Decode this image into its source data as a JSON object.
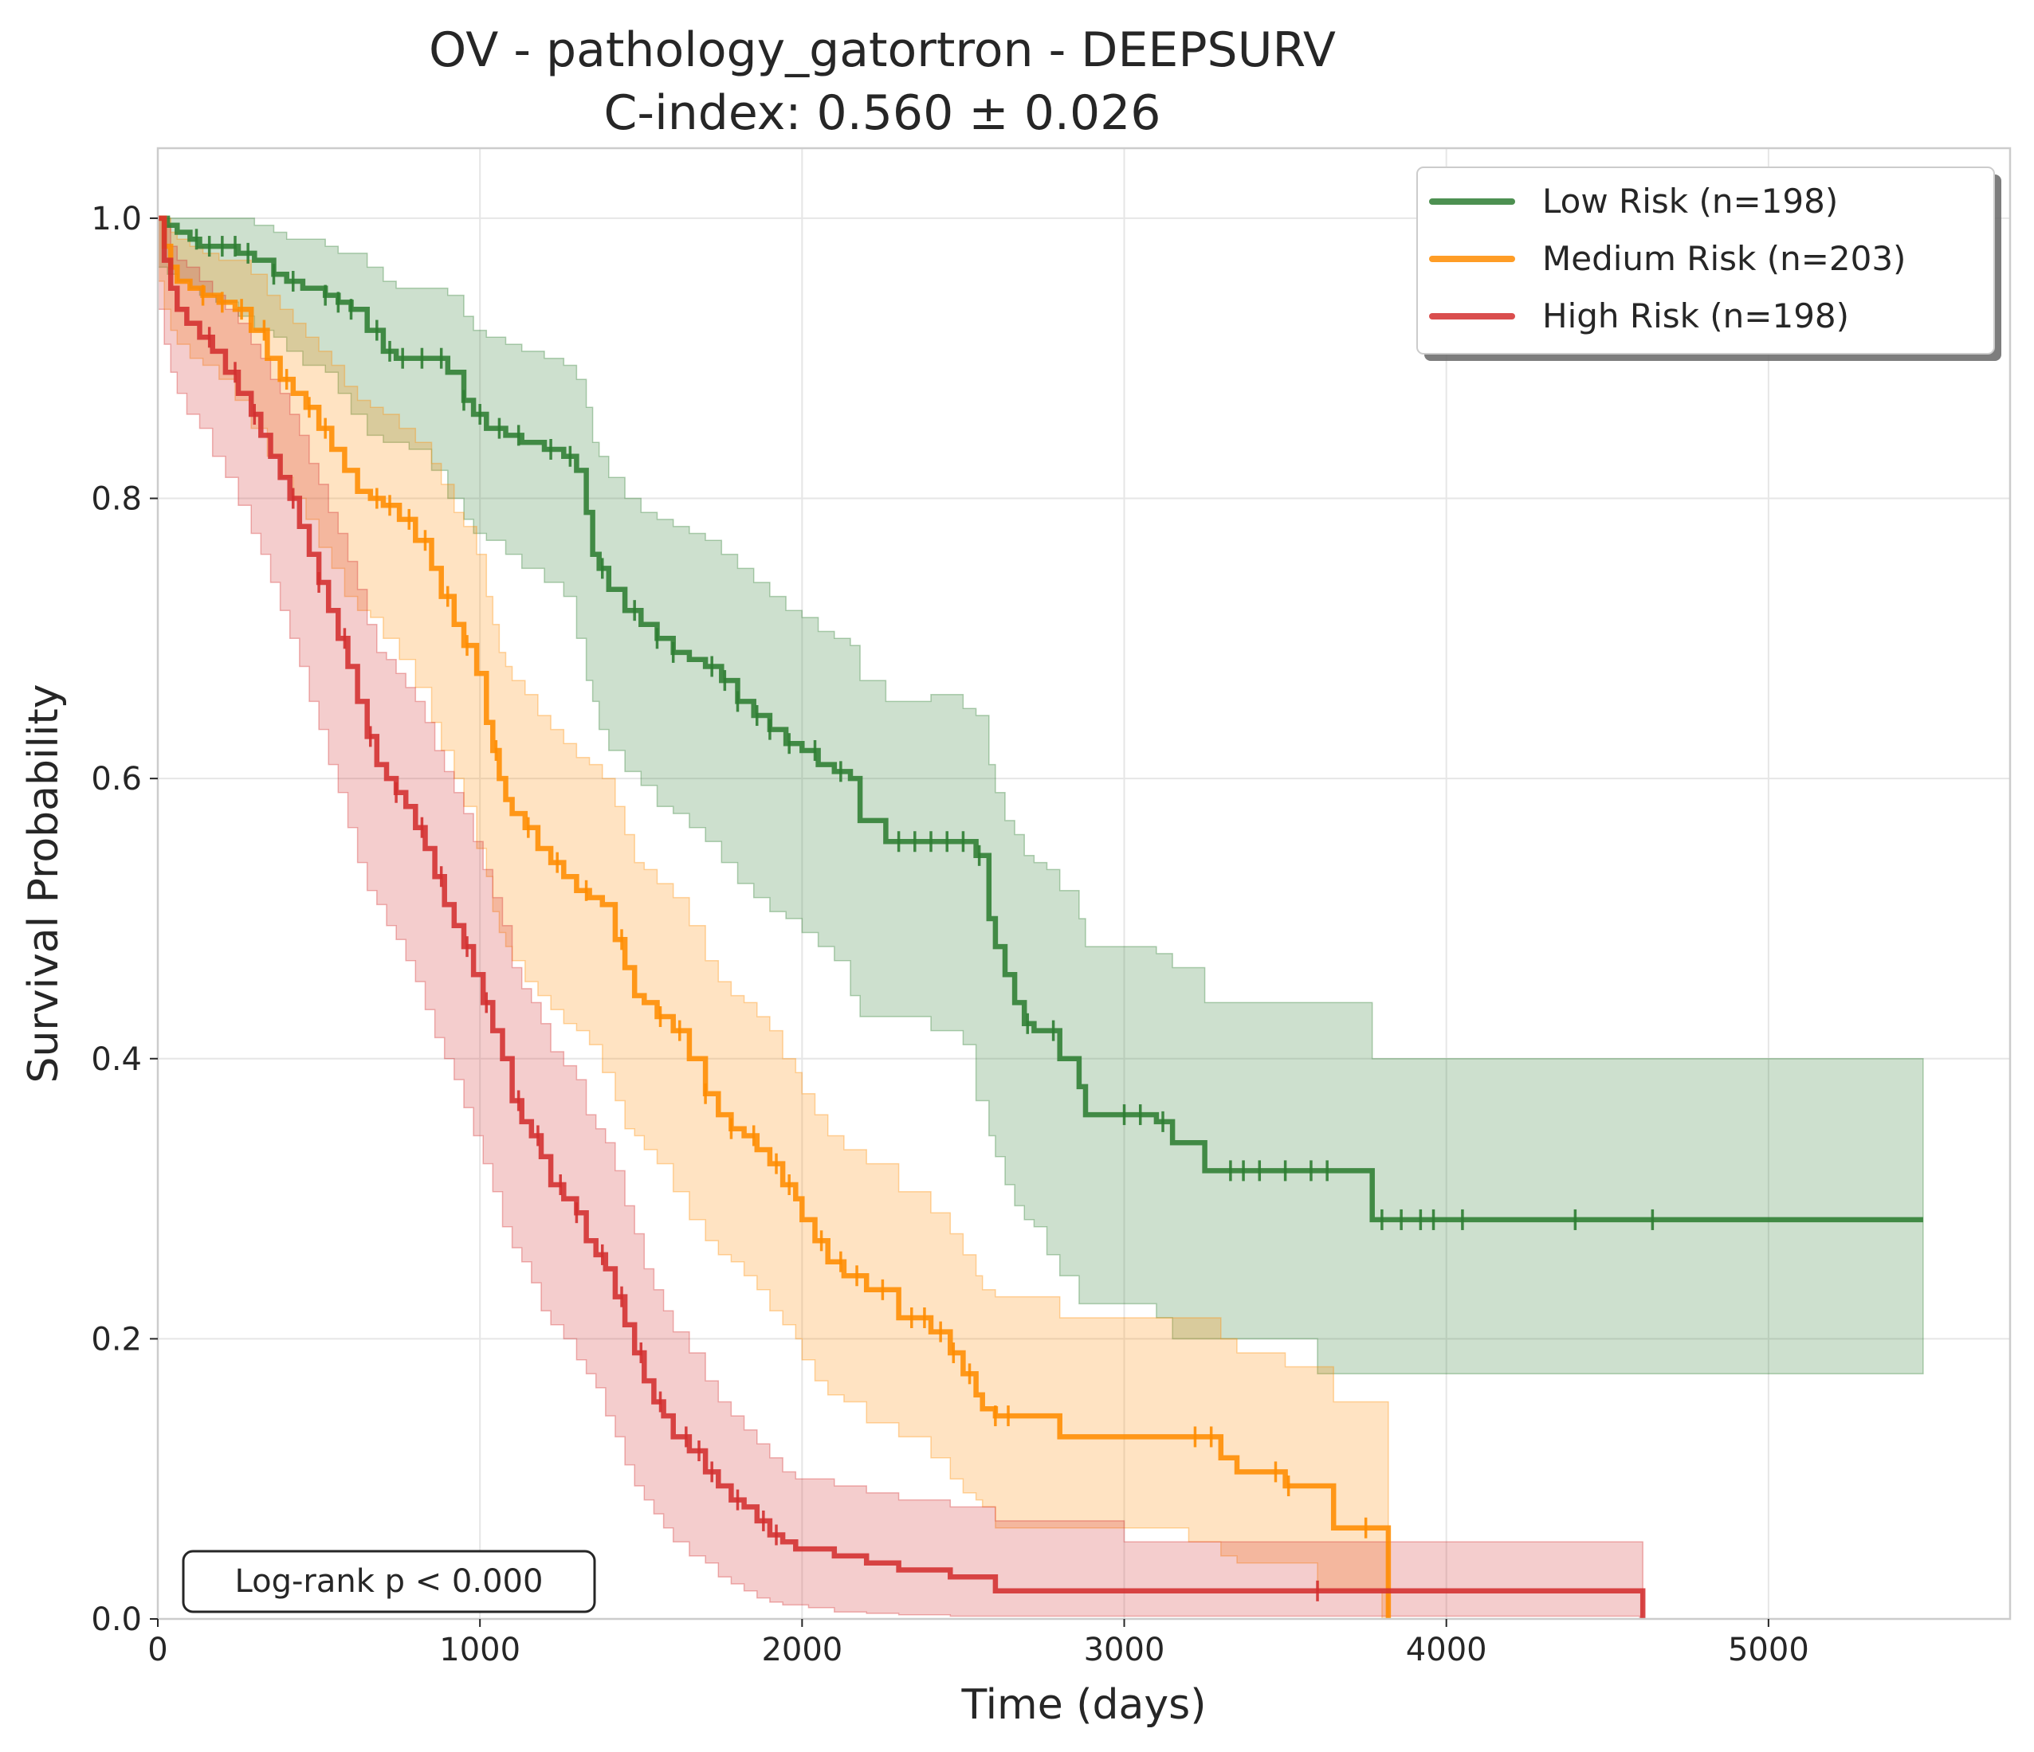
{
  "chart_data": {
    "type": "line",
    "subtype": "kaplan-meier step curves with confidence bands",
    "title": "OV - pathology_gatortron - DEEPSURV",
    "subtitle": "C-index: 0.560 ± 0.026",
    "xlabel": "Time (days)",
    "ylabel": "Survival Probability",
    "xlim": [
      0,
      5750
    ],
    "ylim": [
      0.0,
      1.05
    ],
    "x_ticks": [
      0,
      1000,
      2000,
      3000,
      4000,
      5000
    ],
    "x_tick_labels": [
      "0",
      "1000",
      "2000",
      "3000",
      "4000",
      "5000"
    ],
    "y_ticks": [
      0.0,
      0.2,
      0.4,
      0.6,
      0.8,
      1.0
    ],
    "y_tick_labels": [
      "0.0",
      "0.2",
      "0.4",
      "0.6",
      "0.8",
      "1.0"
    ],
    "grid": true,
    "legend_position": "top-right",
    "annotation": "Log-rank p < 0.000",
    "series": [
      {
        "name": "Low Risk (n=198)",
        "color": "#2e7d32",
        "x": [
          0,
          30,
          60,
          100,
          130,
          180,
          250,
          300,
          360,
          400,
          450,
          520,
          560,
          600,
          650,
          700,
          740,
          780,
          850,
          900,
          950,
          980,
          1020,
          1080,
          1130,
          1200,
          1260,
          1300,
          1330,
          1350,
          1370,
          1400,
          1450,
          1500,
          1550,
          1600,
          1650,
          1700,
          1750,
          1800,
          1850,
          1900,
          1950,
          2000,
          2050,
          2100,
          2150,
          2180,
          2260,
          2400,
          2500,
          2540,
          2580,
          2600,
          2630,
          2660,
          2690,
          2720,
          2760,
          2800,
          2860,
          2880,
          2960,
          3100,
          3150,
          3250,
          3400,
          3500,
          3600,
          3770,
          3800,
          4000,
          4500,
          5000,
          5480
        ],
        "y": [
          1.0,
          0.995,
          0.99,
          0.985,
          0.98,
          0.98,
          0.975,
          0.97,
          0.96,
          0.955,
          0.95,
          0.945,
          0.94,
          0.935,
          0.92,
          0.905,
          0.9,
          0.9,
          0.9,
          0.89,
          0.87,
          0.86,
          0.85,
          0.845,
          0.84,
          0.835,
          0.83,
          0.82,
          0.79,
          0.76,
          0.75,
          0.735,
          0.72,
          0.71,
          0.7,
          0.69,
          0.685,
          0.68,
          0.67,
          0.655,
          0.645,
          0.635,
          0.625,
          0.62,
          0.61,
          0.605,
          0.6,
          0.57,
          0.555,
          0.555,
          0.555,
          0.545,
          0.5,
          0.48,
          0.46,
          0.44,
          0.425,
          0.42,
          0.42,
          0.4,
          0.38,
          0.36,
          0.36,
          0.355,
          0.34,
          0.32,
          0.32,
          0.32,
          0.32,
          0.285,
          0.285,
          0.285,
          0.285,
          0.285,
          0.285
        ],
        "lower": [
          0.97,
          0.965,
          0.96,
          0.955,
          0.95,
          0.945,
          0.94,
          0.93,
          0.92,
          0.915,
          0.905,
          0.895,
          0.89,
          0.875,
          0.86,
          0.845,
          0.84,
          0.84,
          0.835,
          0.82,
          0.8,
          0.785,
          0.775,
          0.77,
          0.76,
          0.75,
          0.74,
          0.73,
          0.7,
          0.67,
          0.655,
          0.635,
          0.62,
          0.605,
          0.595,
          0.58,
          0.575,
          0.565,
          0.555,
          0.54,
          0.525,
          0.515,
          0.505,
          0.5,
          0.49,
          0.48,
          0.47,
          0.445,
          0.43,
          0.43,
          0.42,
          0.41,
          0.37,
          0.345,
          0.33,
          0.31,
          0.295,
          0.285,
          0.28,
          0.26,
          0.245,
          0.225,
          0.225,
          0.225,
          0.215,
          0.2,
          0.2,
          0.2,
          0.2,
          0.175,
          0.175,
          0.175,
          0.175,
          0.175,
          0.175
        ],
        "upper": [
          1.0,
          1.0,
          1.0,
          1.0,
          1.0,
          1.0,
          1.0,
          0.995,
          0.99,
          0.985,
          0.985,
          0.98,
          0.975,
          0.975,
          0.965,
          0.955,
          0.95,
          0.95,
          0.95,
          0.945,
          0.93,
          0.92,
          0.915,
          0.91,
          0.905,
          0.9,
          0.895,
          0.885,
          0.865,
          0.84,
          0.83,
          0.815,
          0.8,
          0.79,
          0.785,
          0.78,
          0.775,
          0.77,
          0.76,
          0.75,
          0.74,
          0.73,
          0.72,
          0.715,
          0.705,
          0.7,
          0.695,
          0.67,
          0.655,
          0.66,
          0.65,
          0.645,
          0.61,
          0.59,
          0.57,
          0.56,
          0.545,
          0.54,
          0.535,
          0.52,
          0.5,
          0.48,
          0.48,
          0.475,
          0.465,
          0.44,
          0.44,
          0.44,
          0.44,
          0.4,
          0.4,
          0.4,
          0.4,
          0.4,
          0.4
        ],
        "censor_x": [
          120,
          160,
          200,
          240,
          280,
          360,
          420,
          520,
          560,
          600,
          680,
          720,
          760,
          820,
          880,
          950,
          1000,
          1060,
          1120,
          1220,
          1280,
          1380,
          1480,
          1550,
          1600,
          1720,
          1760,
          1800,
          1860,
          1900,
          1960,
          2040,
          2120,
          2300,
          2350,
          2400,
          2450,
          2500,
          2550,
          2700,
          2780,
          3000,
          3050,
          3120,
          3330,
          3370,
          3420,
          3500,
          3580,
          3630,
          3800,
          3860,
          3920,
          3960,
          4050,
          4400,
          4640
        ]
      },
      {
        "name": "Medium Risk (n=203)",
        "color": "#ff8c00",
        "x": [
          0,
          20,
          40,
          60,
          100,
          140,
          190,
          240,
          290,
          340,
          380,
          420,
          460,
          500,
          540,
          580,
          620,
          660,
          700,
          750,
          800,
          850,
          880,
          920,
          950,
          990,
          1020,
          1040,
          1060,
          1080,
          1100,
          1140,
          1180,
          1220,
          1260,
          1300,
          1340,
          1380,
          1420,
          1450,
          1480,
          1510,
          1550,
          1600,
          1650,
          1700,
          1740,
          1780,
          1820,
          1860,
          1900,
          1940,
          1980,
          2000,
          2040,
          2080,
          2130,
          2200,
          2300,
          2400,
          2460,
          2500,
          2540,
          2560,
          2600,
          2800,
          3000,
          3200,
          3300,
          3350,
          3500,
          3600,
          3650,
          3800,
          3820
        ],
        "y": [
          1.0,
          0.98,
          0.965,
          0.955,
          0.95,
          0.945,
          0.94,
          0.935,
          0.92,
          0.9,
          0.885,
          0.875,
          0.865,
          0.85,
          0.835,
          0.82,
          0.805,
          0.8,
          0.795,
          0.785,
          0.77,
          0.75,
          0.73,
          0.71,
          0.695,
          0.675,
          0.64,
          0.62,
          0.6,
          0.585,
          0.575,
          0.565,
          0.55,
          0.54,
          0.53,
          0.52,
          0.515,
          0.51,
          0.485,
          0.465,
          0.445,
          0.44,
          0.43,
          0.42,
          0.4,
          0.375,
          0.36,
          0.35,
          0.345,
          0.335,
          0.325,
          0.31,
          0.3,
          0.285,
          0.27,
          0.255,
          0.245,
          0.235,
          0.215,
          0.205,
          0.19,
          0.175,
          0.16,
          0.15,
          0.145,
          0.13,
          0.13,
          0.13,
          0.115,
          0.105,
          0.095,
          0.095,
          0.065,
          0.065,
          0.0
        ],
        "lower": [
          0.98,
          0.955,
          0.935,
          0.92,
          0.91,
          0.9,
          0.895,
          0.885,
          0.87,
          0.85,
          0.83,
          0.815,
          0.8,
          0.785,
          0.765,
          0.75,
          0.73,
          0.72,
          0.715,
          0.7,
          0.685,
          0.665,
          0.64,
          0.62,
          0.6,
          0.58,
          0.55,
          0.53,
          0.505,
          0.49,
          0.48,
          0.47,
          0.455,
          0.445,
          0.435,
          0.425,
          0.42,
          0.41,
          0.39,
          0.37,
          0.35,
          0.345,
          0.335,
          0.325,
          0.305,
          0.285,
          0.27,
          0.26,
          0.255,
          0.245,
          0.235,
          0.22,
          0.21,
          0.2,
          0.185,
          0.17,
          0.16,
          0.155,
          0.14,
          0.13,
          0.115,
          0.1,
          0.09,
          0.085,
          0.08,
          0.065,
          0.065,
          0.065,
          0.055,
          0.045,
          0.04,
          0.04,
          0.02,
          0.02,
          0.0
        ],
        "upper": [
          1.0,
          1.0,
          0.99,
          0.985,
          0.98,
          0.975,
          0.97,
          0.97,
          0.96,
          0.945,
          0.935,
          0.925,
          0.915,
          0.905,
          0.895,
          0.88,
          0.87,
          0.865,
          0.86,
          0.85,
          0.84,
          0.825,
          0.81,
          0.79,
          0.78,
          0.76,
          0.73,
          0.71,
          0.69,
          0.68,
          0.67,
          0.66,
          0.645,
          0.635,
          0.625,
          0.615,
          0.61,
          0.6,
          0.58,
          0.56,
          0.54,
          0.535,
          0.525,
          0.515,
          0.495,
          0.47,
          0.455,
          0.445,
          0.44,
          0.43,
          0.42,
          0.4,
          0.39,
          0.375,
          0.36,
          0.345,
          0.335,
          0.325,
          0.305,
          0.29,
          0.275,
          0.26,
          0.245,
          0.235,
          0.23,
          0.215,
          0.215,
          0.215,
          0.2,
          0.19,
          0.18,
          0.18,
          0.155,
          0.155,
          0.155
        ],
        "censor_x": [
          140,
          200,
          260,
          330,
          400,
          470,
          520,
          680,
          720,
          780,
          830,
          900,
          960,
          1050,
          1150,
          1240,
          1330,
          1440,
          1560,
          1620,
          1700,
          1780,
          1850,
          1920,
          1960,
          2060,
          2120,
          2170,
          2250,
          2340,
          2380,
          2430,
          2470,
          2520,
          2600,
          2640,
          3220,
          3270,
          3470,
          3510,
          3750
        ]
      },
      {
        "name": "High Risk (n=198)",
        "color": "#d32f2f",
        "x": [
          0,
          20,
          40,
          60,
          90,
          130,
          170,
          210,
          250,
          290,
          320,
          350,
          380,
          410,
          440,
          470,
          500,
          530,
          560,
          590,
          620,
          650,
          680,
          710,
          740,
          770,
          800,
          830,
          860,
          890,
          920,
          950,
          980,
          1010,
          1040,
          1070,
          1100,
          1130,
          1160,
          1190,
          1220,
          1260,
          1300,
          1330,
          1360,
          1390,
          1420,
          1450,
          1480,
          1510,
          1540,
          1570,
          1600,
          1650,
          1700,
          1740,
          1780,
          1820,
          1860,
          1900,
          1940,
          1980,
          2020,
          2100,
          2200,
          2300,
          2460,
          2600,
          2700,
          3000,
          3600,
          3800,
          4000,
          4600,
          4610
        ],
        "y": [
          1.0,
          0.97,
          0.95,
          0.935,
          0.925,
          0.915,
          0.905,
          0.89,
          0.875,
          0.86,
          0.845,
          0.83,
          0.815,
          0.8,
          0.78,
          0.76,
          0.74,
          0.72,
          0.7,
          0.68,
          0.655,
          0.63,
          0.61,
          0.6,
          0.59,
          0.58,
          0.565,
          0.55,
          0.53,
          0.51,
          0.495,
          0.48,
          0.46,
          0.44,
          0.42,
          0.4,
          0.37,
          0.355,
          0.345,
          0.33,
          0.31,
          0.3,
          0.29,
          0.27,
          0.26,
          0.25,
          0.23,
          0.21,
          0.19,
          0.17,
          0.155,
          0.145,
          0.13,
          0.12,
          0.105,
          0.095,
          0.085,
          0.08,
          0.07,
          0.06,
          0.055,
          0.05,
          0.05,
          0.045,
          0.04,
          0.035,
          0.03,
          0.02,
          0.02,
          0.02,
          0.02,
          0.02,
          0.02,
          0.02,
          0.0
        ],
        "lower": [
          0.97,
          0.935,
          0.91,
          0.89,
          0.875,
          0.86,
          0.85,
          0.83,
          0.815,
          0.795,
          0.775,
          0.76,
          0.74,
          0.72,
          0.7,
          0.68,
          0.655,
          0.635,
          0.61,
          0.59,
          0.565,
          0.54,
          0.52,
          0.51,
          0.495,
          0.485,
          0.47,
          0.455,
          0.435,
          0.415,
          0.4,
          0.385,
          0.365,
          0.345,
          0.325,
          0.305,
          0.28,
          0.265,
          0.255,
          0.24,
          0.22,
          0.21,
          0.2,
          0.185,
          0.175,
          0.165,
          0.145,
          0.13,
          0.11,
          0.095,
          0.085,
          0.075,
          0.065,
          0.055,
          0.045,
          0.04,
          0.03,
          0.025,
          0.02,
          0.015,
          0.012,
          0.01,
          0.01,
          0.008,
          0.005,
          0.004,
          0.003,
          0.002,
          0.002,
          0.002,
          0.002,
          0.002,
          0.002,
          0.002,
          0.0
        ],
        "upper": [
          1.0,
          0.995,
          0.98,
          0.97,
          0.965,
          0.955,
          0.945,
          0.935,
          0.925,
          0.91,
          0.9,
          0.885,
          0.875,
          0.86,
          0.845,
          0.825,
          0.81,
          0.79,
          0.775,
          0.755,
          0.735,
          0.71,
          0.69,
          0.685,
          0.675,
          0.665,
          0.655,
          0.64,
          0.62,
          0.605,
          0.59,
          0.575,
          0.555,
          0.535,
          0.515,
          0.495,
          0.465,
          0.45,
          0.44,
          0.425,
          0.405,
          0.395,
          0.385,
          0.36,
          0.35,
          0.34,
          0.32,
          0.295,
          0.275,
          0.25,
          0.235,
          0.22,
          0.205,
          0.19,
          0.17,
          0.155,
          0.145,
          0.135,
          0.125,
          0.115,
          0.105,
          0.1,
          0.1,
          0.095,
          0.09,
          0.085,
          0.08,
          0.07,
          0.07,
          0.055,
          0.055,
          0.055,
          0.055,
          0.055,
          0.055
        ],
        "censor_x": [
          160,
          240,
          300,
          420,
          500,
          580,
          660,
          740,
          820,
          880,
          960,
          1020,
          1120,
          1180,
          1250,
          1300,
          1380,
          1440,
          1500,
          1560,
          1640,
          1680,
          1720,
          1800,
          1880,
          1920,
          3600
        ]
      }
    ]
  }
}
